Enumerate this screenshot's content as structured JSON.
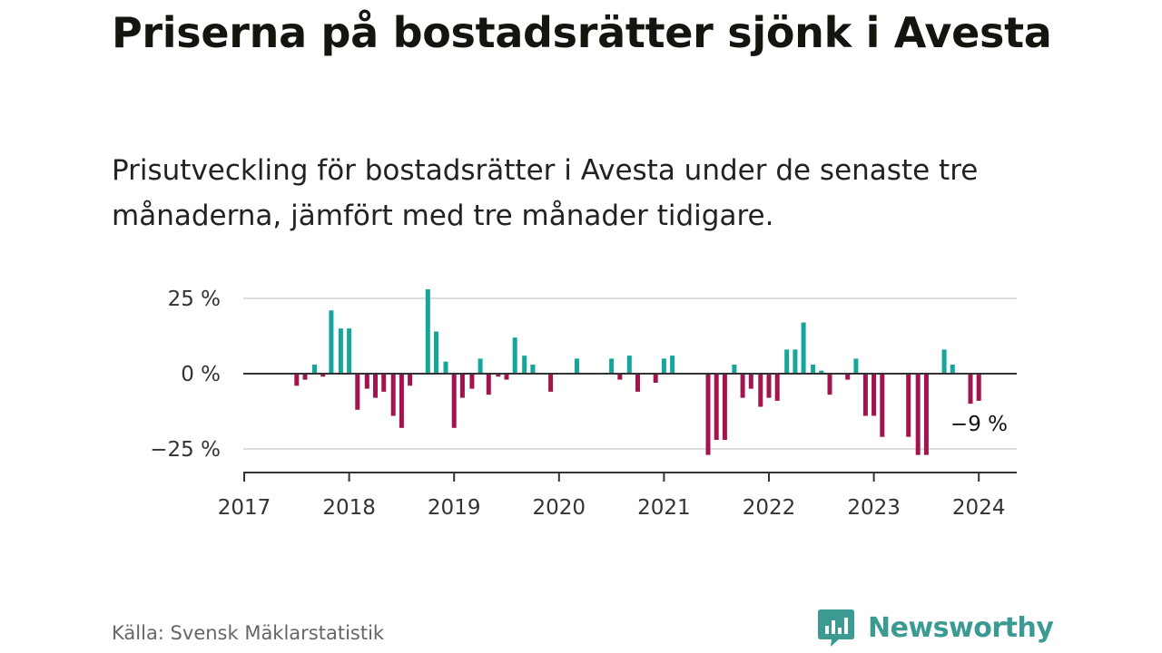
{
  "title": "Priserna på bostadsrätter sjönk i Avesta",
  "subtitle": "Prisutveckling för bostadsrätter i Avesta under de senaste tre månaderna, jämfört med tre månader tidigare.",
  "source": "Källa: Svensk Mäklarstatistik",
  "brand": {
    "name": "Newsworthy",
    "icon": "newsworthy-logo-icon"
  },
  "colors": {
    "positive": "#14a59b",
    "negative": "#a3144e",
    "grid": "#dddddd",
    "axis": "#333333",
    "brand": "#3b9b92"
  },
  "chart_data": {
    "type": "bar",
    "title": "Priserna på bostadsrätter sjönk i Avesta",
    "xlabel": "",
    "ylabel": "",
    "x_range": [
      2017.0,
      2024.38
    ],
    "ylim": [
      -30,
      30
    ],
    "y_ticks": [
      25,
      0,
      -25
    ],
    "y_tick_labels": [
      "25 %",
      "0 %",
      "−25 %"
    ],
    "x_ticks": [
      2017,
      2018,
      2019,
      2020,
      2021,
      2022,
      2023,
      2024
    ],
    "x_tick_labels": [
      "2017",
      "2018",
      "2019",
      "2020",
      "2021",
      "2022",
      "2023",
      "2024"
    ],
    "end_label": "−9 %",
    "grid": true,
    "values": [
      {
        "x": 2017.5,
        "y": -4
      },
      {
        "x": 2017.58,
        "y": -2
      },
      {
        "x": 2017.67,
        "y": 3
      },
      {
        "x": 2017.75,
        "y": -1
      },
      {
        "x": 2017.83,
        "y": 21
      },
      {
        "x": 2017.92,
        "y": 15
      },
      {
        "x": 2018.0,
        "y": 15
      },
      {
        "x": 2018.08,
        "y": -12
      },
      {
        "x": 2018.17,
        "y": -5
      },
      {
        "x": 2018.25,
        "y": -8
      },
      {
        "x": 2018.33,
        "y": -6
      },
      {
        "x": 2018.42,
        "y": -14
      },
      {
        "x": 2018.5,
        "y": -18
      },
      {
        "x": 2018.58,
        "y": -4
      },
      {
        "x": 2018.75,
        "y": 28
      },
      {
        "x": 2018.83,
        "y": 14
      },
      {
        "x": 2018.92,
        "y": 4
      },
      {
        "x": 2019.0,
        "y": -18
      },
      {
        "x": 2019.08,
        "y": -8
      },
      {
        "x": 2019.17,
        "y": -5
      },
      {
        "x": 2019.25,
        "y": 5
      },
      {
        "x": 2019.33,
        "y": -7
      },
      {
        "x": 2019.42,
        "y": -1
      },
      {
        "x": 2019.5,
        "y": -2
      },
      {
        "x": 2019.58,
        "y": 12
      },
      {
        "x": 2019.67,
        "y": 6
      },
      {
        "x": 2019.75,
        "y": 3
      },
      {
        "x": 2019.92,
        "y": -6
      },
      {
        "x": 2020.17,
        "y": 5
      },
      {
        "x": 2020.5,
        "y": 5
      },
      {
        "x": 2020.58,
        "y": -2
      },
      {
        "x": 2020.67,
        "y": 6
      },
      {
        "x": 2020.75,
        "y": -6
      },
      {
        "x": 2020.92,
        "y": -3
      },
      {
        "x": 2021.0,
        "y": 5
      },
      {
        "x": 2021.08,
        "y": 6
      },
      {
        "x": 2021.42,
        "y": -27
      },
      {
        "x": 2021.5,
        "y": -22
      },
      {
        "x": 2021.58,
        "y": -22
      },
      {
        "x": 2021.67,
        "y": 3
      },
      {
        "x": 2021.75,
        "y": -8
      },
      {
        "x": 2021.83,
        "y": -5
      },
      {
        "x": 2021.92,
        "y": -11
      },
      {
        "x": 2022.0,
        "y": -8
      },
      {
        "x": 2022.08,
        "y": -9
      },
      {
        "x": 2022.17,
        "y": 8
      },
      {
        "x": 2022.25,
        "y": 8
      },
      {
        "x": 2022.33,
        "y": 17
      },
      {
        "x": 2022.42,
        "y": 3
      },
      {
        "x": 2022.5,
        "y": 1
      },
      {
        "x": 2022.58,
        "y": -7
      },
      {
        "x": 2022.75,
        "y": -2
      },
      {
        "x": 2022.83,
        "y": 5
      },
      {
        "x": 2022.92,
        "y": -14
      },
      {
        "x": 2023.0,
        "y": -14
      },
      {
        "x": 2023.08,
        "y": -21
      },
      {
        "x": 2023.33,
        "y": -21
      },
      {
        "x": 2023.42,
        "y": -27
      },
      {
        "x": 2023.5,
        "y": -27
      },
      {
        "x": 2023.67,
        "y": 8
      },
      {
        "x": 2023.75,
        "y": 3
      },
      {
        "x": 2023.92,
        "y": -10
      },
      {
        "x": 2024.0,
        "y": -9
      }
    ]
  }
}
